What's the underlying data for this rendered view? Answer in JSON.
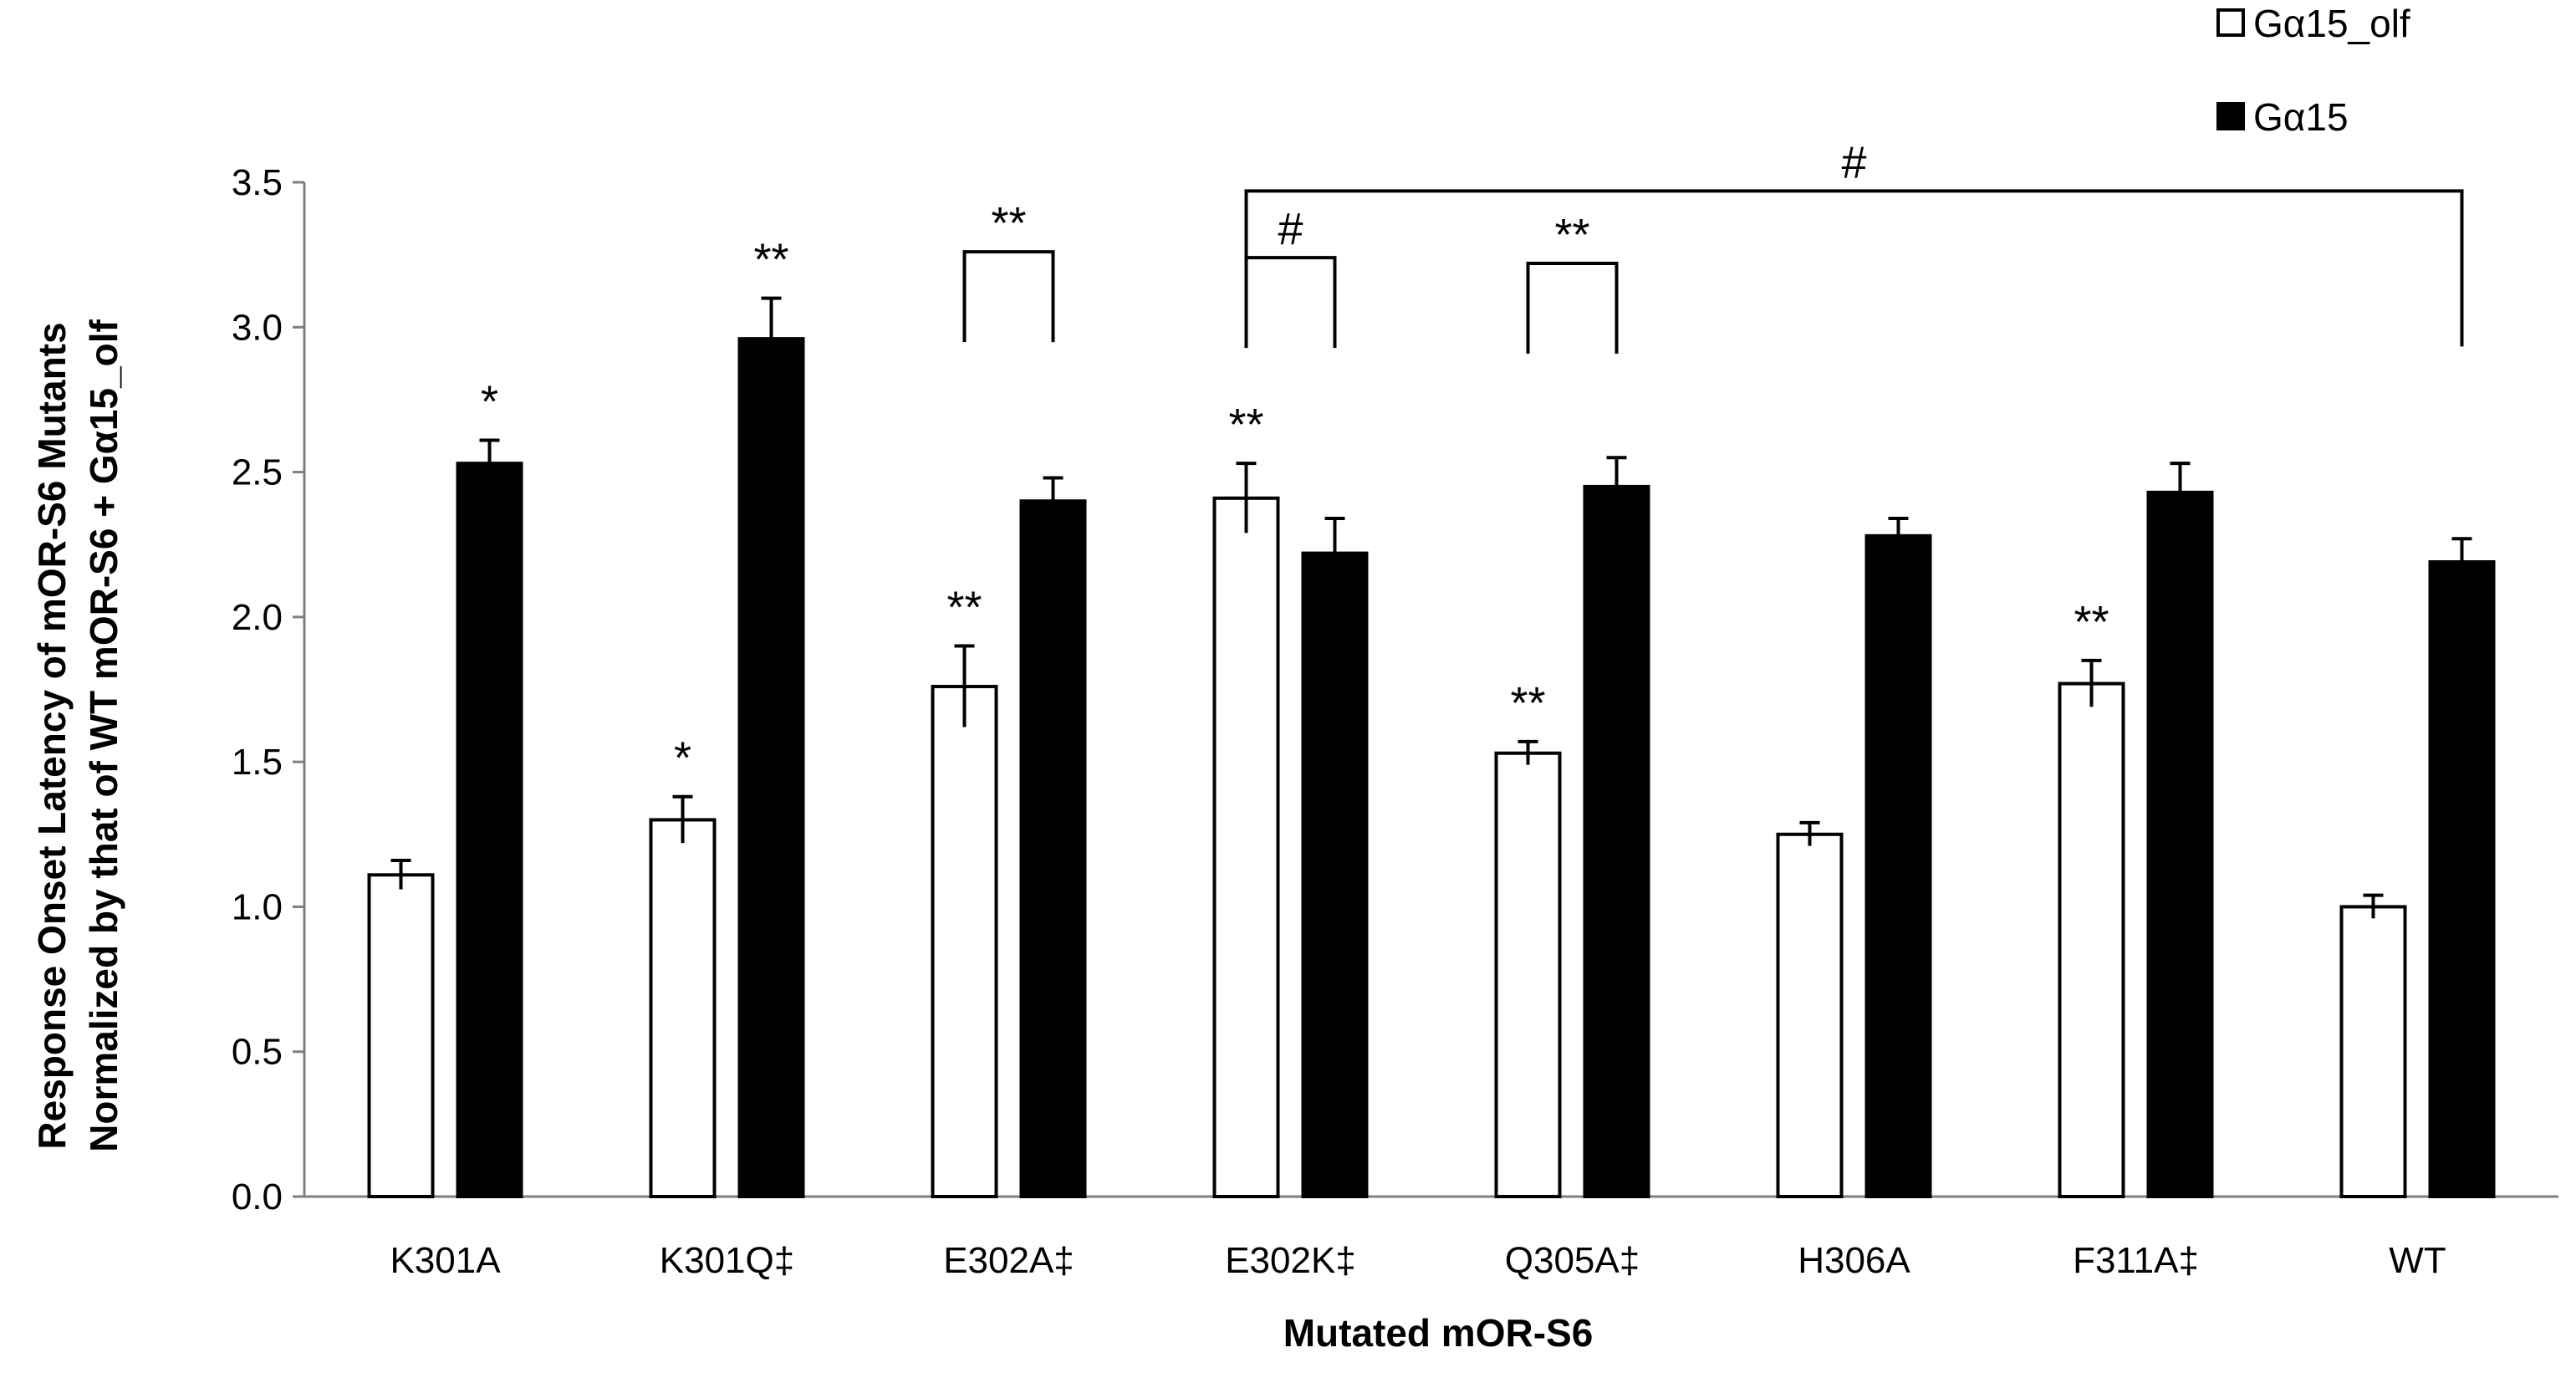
{
  "chart_data": {
    "type": "bar",
    "xlabel": "Mutated mOR-S6",
    "ylabel_line1": "Response Onset Latency of  mOR-S6 Mutants",
    "ylabel_line2": "Normalized by that of WT mOR-S6 + Gα15_olf",
    "categories": [
      "K301A",
      "K301Q‡",
      "E302A‡",
      "E302K‡",
      "Q305A‡",
      "H306A",
      "F311A‡",
      "WT"
    ],
    "ylim": [
      0,
      3.5
    ],
    "yticks": [
      "0.0",
      "0.5",
      "1.0",
      "1.5",
      "2.0",
      "2.5",
      "3.0",
      "3.5"
    ],
    "legend_position": "top-right",
    "series": [
      {
        "name": "Gα15_olf",
        "color": "#ffffff",
        "values": [
          1.11,
          1.3,
          1.76,
          2.41,
          1.53,
          1.25,
          1.77,
          1.0
        ],
        "errors": [
          0.05,
          0.08,
          0.14,
          0.12,
          0.04,
          0.04,
          0.08,
          0.04
        ],
        "significance": [
          "",
          "*",
          "**",
          "**",
          "**",
          "",
          "**",
          ""
        ]
      },
      {
        "name": "Gα15",
        "color": "#000000",
        "values": [
          2.53,
          2.96,
          2.4,
          2.22,
          2.45,
          2.28,
          2.43,
          2.19
        ],
        "errors": [
          0.08,
          0.14,
          0.08,
          0.12,
          0.1,
          0.06,
          0.1,
          0.08
        ],
        "significance": [
          "*",
          "**",
          "",
          "",
          "",
          "",
          "",
          ""
        ]
      }
    ],
    "brackets": [
      {
        "category": "E302A‡",
        "label": "**",
        "y": 3.26
      },
      {
        "category": "E302K‡",
        "label": "#",
        "y": 3.24
      },
      {
        "category": "Q305A‡",
        "label": "**",
        "y": 3.22
      },
      {
        "from_category": "E302K‡",
        "to_category": "WT",
        "label": "#",
        "y": 3.47
      }
    ]
  }
}
